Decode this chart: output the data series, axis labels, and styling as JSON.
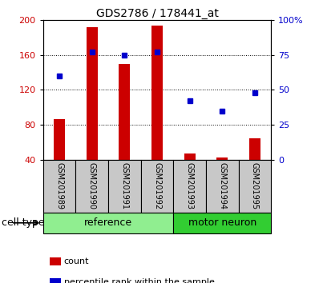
{
  "title": "GDS2786 / 178441_at",
  "samples": [
    "GSM201989",
    "GSM201990",
    "GSM201991",
    "GSM201992",
    "GSM201993",
    "GSM201994",
    "GSM201995"
  ],
  "counts": [
    87,
    192,
    150,
    193,
    47,
    43,
    65
  ],
  "percentiles": [
    60,
    77,
    75,
    77,
    42,
    35,
    48
  ],
  "left_ylim": [
    40,
    200
  ],
  "left_yticks": [
    40,
    80,
    120,
    160,
    200
  ],
  "right_ylim": [
    0,
    100
  ],
  "right_yticks": [
    0,
    25,
    50,
    75,
    100
  ],
  "right_yticklabels": [
    "0",
    "25",
    "50",
    "75",
    "100%"
  ],
  "bar_color": "#cc0000",
  "dot_color": "#0000cc",
  "left_axis_color": "#cc0000",
  "right_axis_color": "#0000cc",
  "groups": [
    {
      "label": "reference",
      "indices": [
        0,
        1,
        2,
        3
      ],
      "color": "#90EE90"
    },
    {
      "label": "motor neuron",
      "indices": [
        4,
        5,
        6
      ],
      "color": "#32CD32"
    }
  ],
  "group_label": "cell type",
  "legend_items": [
    {
      "label": "count",
      "color": "#cc0000"
    },
    {
      "label": "percentile rank within the sample",
      "color": "#0000cc"
    }
  ],
  "tick_area_color": "#c8c8c8",
  "background_color": "#ffffff",
  "bar_width": 0.35,
  "title_fontsize": 10,
  "tick_fontsize": 8,
  "sample_label_fontsize": 7,
  "group_label_fontsize": 9,
  "legend_fontsize": 8
}
